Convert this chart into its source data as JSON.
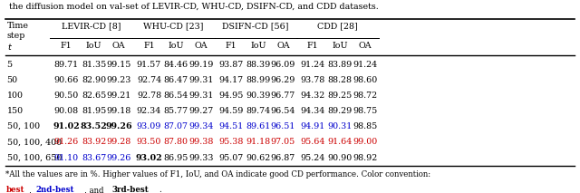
{
  "caption_top": "the diffusion model on val-set of LEVIR-CD, WHU-CD, DSIFN-CD, and CDD datasets.",
  "rows": [
    [
      "5",
      "89.71",
      "81.35",
      "99.15",
      "91.57",
      "84.46",
      "99.19",
      "93.87",
      "88.39",
      "96.09",
      "91.24",
      "83.89",
      "91.24"
    ],
    [
      "50",
      "90.66",
      "82.90",
      "99.23",
      "92.74",
      "86.47",
      "99.31",
      "94.17",
      "88.99",
      "96.29",
      "93.78",
      "88.28",
      "98.60"
    ],
    [
      "100",
      "90.50",
      "82.65",
      "99.21",
      "92.78",
      "86.54",
      "99.31",
      "94.95",
      "90.39",
      "96.77",
      "94.32",
      "89.25",
      "98.72"
    ],
    [
      "150",
      "90.08",
      "81.95",
      "99.18",
      "92.34",
      "85.77",
      "99.27",
      "94.59",
      "89.74",
      "96.54",
      "94.34",
      "89.29",
      "98.75"
    ],
    [
      "50, 100",
      "91.02",
      "83.52",
      "99.26",
      "93.09",
      "87.07",
      "99.34",
      "94.51",
      "89.61",
      "96.51",
      "94.91",
      "90.31",
      "98.85"
    ],
    [
      "50, 100, 400",
      "91.26",
      "83.92",
      "99.28",
      "93.50",
      "87.80",
      "99.38",
      "95.38",
      "91.18",
      "97.05",
      "95.64",
      "91.64",
      "99.00"
    ],
    [
      "50, 100, 650",
      "91.10",
      "83.67",
      "99.26",
      "93.02",
      "86.95",
      "99.33",
      "95.07",
      "90.62",
      "96.87",
      "95.24",
      "90.90",
      "98.92"
    ]
  ],
  "row_styles": [
    [
      "normal",
      "normal",
      "normal",
      "normal",
      "normal",
      "normal",
      "normal",
      "normal",
      "normal",
      "normal",
      "normal",
      "normal",
      "normal"
    ],
    [
      "normal",
      "normal",
      "normal",
      "normal",
      "normal",
      "normal",
      "normal",
      "normal",
      "normal",
      "normal",
      "normal",
      "normal",
      "normal"
    ],
    [
      "normal",
      "normal",
      "normal",
      "normal",
      "normal",
      "normal",
      "normal",
      "normal",
      "normal",
      "normal",
      "normal",
      "normal",
      "normal"
    ],
    [
      "normal",
      "normal",
      "normal",
      "normal",
      "normal",
      "normal",
      "normal",
      "normal",
      "normal",
      "normal",
      "normal",
      "normal",
      "normal"
    ],
    [
      "normal",
      "bold",
      "bold",
      "bold",
      "blue",
      "blue",
      "blue",
      "blue",
      "blue",
      "blue",
      "blue",
      "blue",
      "normal"
    ],
    [
      "normal",
      "red",
      "red",
      "red",
      "red",
      "red",
      "red",
      "red",
      "red",
      "red",
      "red",
      "red",
      "red"
    ],
    [
      "normal",
      "blue",
      "blue",
      "blue",
      "bold",
      "normal",
      "normal",
      "normal",
      "normal",
      "normal",
      "normal",
      "normal",
      "normal"
    ]
  ],
  "group_headers": [
    "LEVIR-CD [8]",
    "WHU-CD [23]",
    "DSIFN-CD [56]",
    "CDD [28]"
  ],
  "footnote": "*All the values are in %. Higher values of F1, IoU, and OA indicate good CD performance. Color convention:",
  "color_red": "#cc0000",
  "color_blue": "#0000cc",
  "color_black": "#000000",
  "bg_color": "#ffffff"
}
